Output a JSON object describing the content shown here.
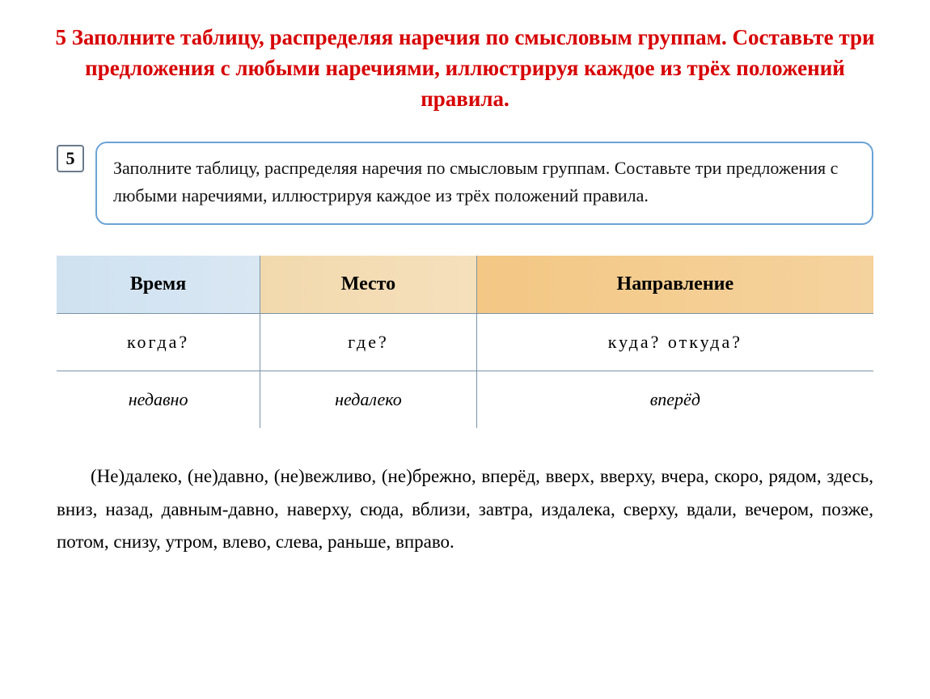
{
  "title": "5 Заполните таблицу, распределяя наречия по смысловым группам. Составьте три предложения с любыми наречиями, иллюстрируя каждое из трёх положений правила.",
  "exercise": {
    "number": "5",
    "text": "Заполните таблицу, распределяя наречия по смысловым группам. Составьте три предложения с любыми наречиями, иллюстрируя каждое из трёх положений правила."
  },
  "table": {
    "headers": {
      "time": "Время",
      "place": "Место",
      "direction": "Направление"
    },
    "questions": {
      "time": "когда?",
      "place": "где?",
      "direction": "куда? откуда?"
    },
    "examples": {
      "time": "недавно",
      "place": "недалеко",
      "direction": "вперёд"
    },
    "colors": {
      "time_bg": "#cfe1f0",
      "place_bg": "#f2d9ad",
      "direction_bg": "#f3c784",
      "border": "#7a93a6"
    }
  },
  "words": "(Не)далеко, (не)давно, (не)вежливо, (не)брежно, вперёд, вверх, вверху, вчера, скоро, рядом, здесь, вниз, назад, давным-давно, наверху, сюда, вблизи, завтра, издалека, сверху, вдали, вечером, позже, потом, снизу, утром, влево, слева, раньше, вправо.",
  "style": {
    "title_color": "#d70000",
    "bubble_border": "#6ba3d6",
    "body_font_size": 22,
    "title_font_size": 27
  }
}
